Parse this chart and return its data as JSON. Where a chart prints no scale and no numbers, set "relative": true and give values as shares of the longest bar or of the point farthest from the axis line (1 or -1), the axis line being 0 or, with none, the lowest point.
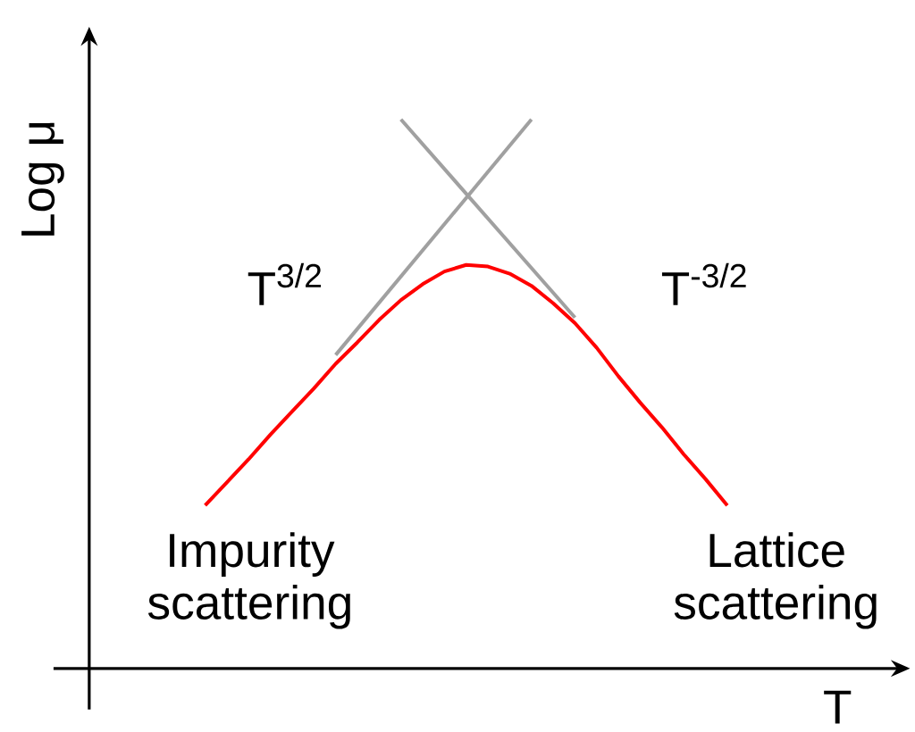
{
  "chart_data": {
    "type": "line",
    "relative": true,
    "xlabel": "T",
    "ylabel": "Log μ",
    "marker": "none",
    "line_style": "solid",
    "categories": [
      null,
      null,
      null,
      null,
      null,
      null,
      null,
      null,
      null,
      null,
      null,
      null,
      null,
      null,
      null,
      null,
      null,
      null,
      null,
      null,
      null,
      null,
      null,
      null,
      null
    ],
    "annotations": [
      "T$^{3/2}$",
      "T$^{-3/2}$",
      "Impurity scattering",
      "Lattice scattering"
    ],
    "series": [
      {
        "color": "#a0a0a0",
        "values": [
          null,
          null,
          null,
          null,
          null,
          null,
          0.571,
          null,
          null,
          null,
          null,
          null,
          null,
          null,
          null,
          1.0,
          null,
          null,
          null,
          null,
          null,
          null,
          null,
          null,
          null
        ]
      },
      {
        "color": "#a0a0a0",
        "values": [
          null,
          null,
          null,
          null,
          null,
          null,
          null,
          null,
          null,
          1.0,
          null,
          null,
          null,
          null,
          null,
          null,
          null,
          0.639,
          null,
          null,
          null,
          null,
          null,
          null,
          null
        ]
      },
      {
        "color": "#ff0000",
        "values": [
          0.297,
          0.339,
          0.381,
          0.426,
          0.468,
          0.51,
          0.555,
          0.594,
          0.635,
          0.671,
          0.7,
          0.723,
          0.735,
          0.732,
          0.719,
          0.697,
          0.665,
          0.629,
          0.584,
          0.532,
          0.484,
          0.439,
          0.39,
          0.345,
          0.297
        ]
      }
    ]
  }
}
